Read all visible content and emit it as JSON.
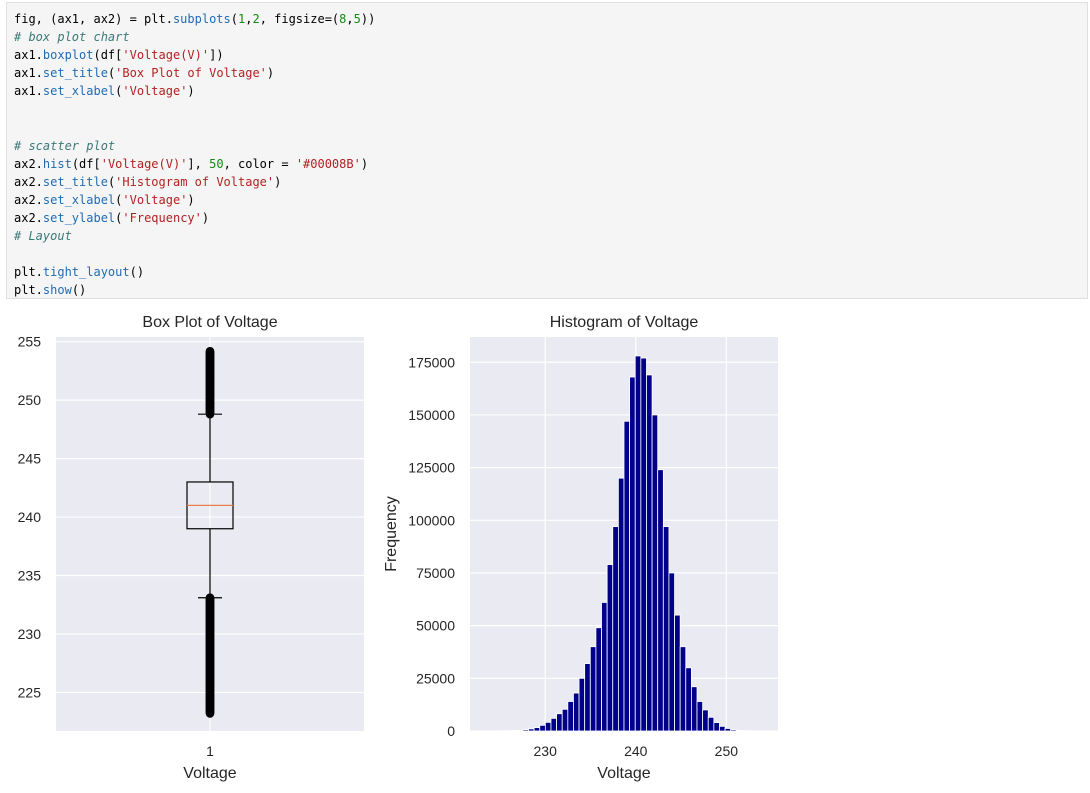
{
  "code": {
    "lines": [
      [
        {
          "t": "fig, (ax1, ax2) = plt.",
          "c": ""
        },
        {
          "t": "subplots",
          "c": "fn"
        },
        {
          "t": "(",
          "c": ""
        },
        {
          "t": "1",
          "c": "num"
        },
        {
          "t": ",",
          "c": ""
        },
        {
          "t": "2",
          "c": "num"
        },
        {
          "t": ", figsize=(",
          "c": ""
        },
        {
          "t": "8",
          "c": "num"
        },
        {
          "t": ",",
          "c": ""
        },
        {
          "t": "5",
          "c": "num"
        },
        {
          "t": "))",
          "c": ""
        }
      ],
      [
        {
          "t": "# box plot chart",
          "c": "cmt"
        }
      ],
      [
        {
          "t": "ax1.",
          "c": ""
        },
        {
          "t": "boxplot",
          "c": "fn"
        },
        {
          "t": "(df[",
          "c": ""
        },
        {
          "t": "'Voltage(V)'",
          "c": "str"
        },
        {
          "t": "])",
          "c": ""
        }
      ],
      [
        {
          "t": "ax1.",
          "c": ""
        },
        {
          "t": "set_title",
          "c": "fn"
        },
        {
          "t": "(",
          "c": ""
        },
        {
          "t": "'Box Plot of Voltage'",
          "c": "str"
        },
        {
          "t": ")",
          "c": ""
        }
      ],
      [
        {
          "t": "ax1.",
          "c": ""
        },
        {
          "t": "set_xlabel",
          "c": "fn"
        },
        {
          "t": "(",
          "c": ""
        },
        {
          "t": "'Voltage'",
          "c": "str"
        },
        {
          "t": ")",
          "c": ""
        }
      ],
      [],
      [],
      [
        {
          "t": "# scatter plot",
          "c": "cmt"
        }
      ],
      [
        {
          "t": "ax2.",
          "c": ""
        },
        {
          "t": "hist",
          "c": "fn"
        },
        {
          "t": "(df[",
          "c": ""
        },
        {
          "t": "'Voltage(V)'",
          "c": "str"
        },
        {
          "t": "], ",
          "c": ""
        },
        {
          "t": "50",
          "c": "num"
        },
        {
          "t": ", color = ",
          "c": ""
        },
        {
          "t": "'#00008B'",
          "c": "str"
        },
        {
          "t": ")",
          "c": ""
        }
      ],
      [
        {
          "t": "ax2.",
          "c": ""
        },
        {
          "t": "set_title",
          "c": "fn"
        },
        {
          "t": "(",
          "c": ""
        },
        {
          "t": "'Histogram of Voltage'",
          "c": "str"
        },
        {
          "t": ")",
          "c": ""
        }
      ],
      [
        {
          "t": "ax2.",
          "c": ""
        },
        {
          "t": "set_xlabel",
          "c": "fn"
        },
        {
          "t": "(",
          "c": ""
        },
        {
          "t": "'Voltage'",
          "c": "str"
        },
        {
          "t": ")",
          "c": ""
        }
      ],
      [
        {
          "t": "ax2.",
          "c": ""
        },
        {
          "t": "set_ylabel",
          "c": "fn"
        },
        {
          "t": "(",
          "c": ""
        },
        {
          "t": "'Frequency'",
          "c": "str"
        },
        {
          "t": ")",
          "c": ""
        }
      ],
      [
        {
          "t": "# Layout",
          "c": "cmt"
        }
      ],
      [],
      [
        {
          "t": "plt.",
          "c": ""
        },
        {
          "t": "tight_layout",
          "c": "fn"
        },
        {
          "t": "()",
          "c": ""
        }
      ],
      [
        {
          "t": "plt.",
          "c": ""
        },
        {
          "t": "show",
          "c": "fn"
        },
        {
          "t": "()",
          "c": ""
        }
      ]
    ]
  },
  "chart_data": [
    {
      "type": "box",
      "title": "Box Plot of Voltage",
      "xlabel": "Voltage",
      "ylabel": "",
      "categories": [
        "1"
      ],
      "ylim": [
        221.7,
        255.4
      ],
      "yticks": [
        225,
        230,
        235,
        240,
        245,
        250,
        255
      ],
      "box": {
        "q1": 239.0,
        "median": 241.0,
        "q3": 243.0,
        "whisker_low": 233.1,
        "whisker_high": 248.8
      },
      "outlier_range_low": [
        223.2,
        233.1
      ],
      "outlier_range_high": [
        248.8,
        254.2
      ],
      "colors": {
        "box": "#000000",
        "median": "#e8804a",
        "background": "#eaeaf2",
        "grid": "#ffffff"
      }
    },
    {
      "type": "histogram",
      "title": "Histogram of Voltage",
      "xlabel": "Voltage",
      "ylabel": "Frequency",
      "bins": 50,
      "bin_range": [
        223.2,
        254.2
      ],
      "xlim": [
        221.7,
        255.7
      ],
      "ylim": [
        0,
        187000
      ],
      "xticks": [
        230,
        240,
        250
      ],
      "yticks": [
        0,
        25000,
        50000,
        75000,
        100000,
        125000,
        150000,
        175000
      ],
      "values": [
        20,
        30,
        50,
        90,
        140,
        220,
        350,
        600,
        1000,
        1600,
        2700,
        4100,
        6000,
        8200,
        10300,
        14000,
        18000,
        25000,
        32000,
        40000,
        49000,
        61000,
        79000,
        97000,
        120000,
        147000,
        168000,
        178000,
        177000,
        169000,
        150000,
        124000,
        97000,
        75000,
        55000,
        40000,
        30000,
        21000,
        14000,
        10000,
        6500,
        4000,
        2200,
        1200,
        600,
        300,
        150,
        80,
        40,
        20
      ],
      "colors": {
        "bar": "#00008B",
        "background": "#eaeaf2",
        "grid": "#ffffff"
      }
    }
  ]
}
